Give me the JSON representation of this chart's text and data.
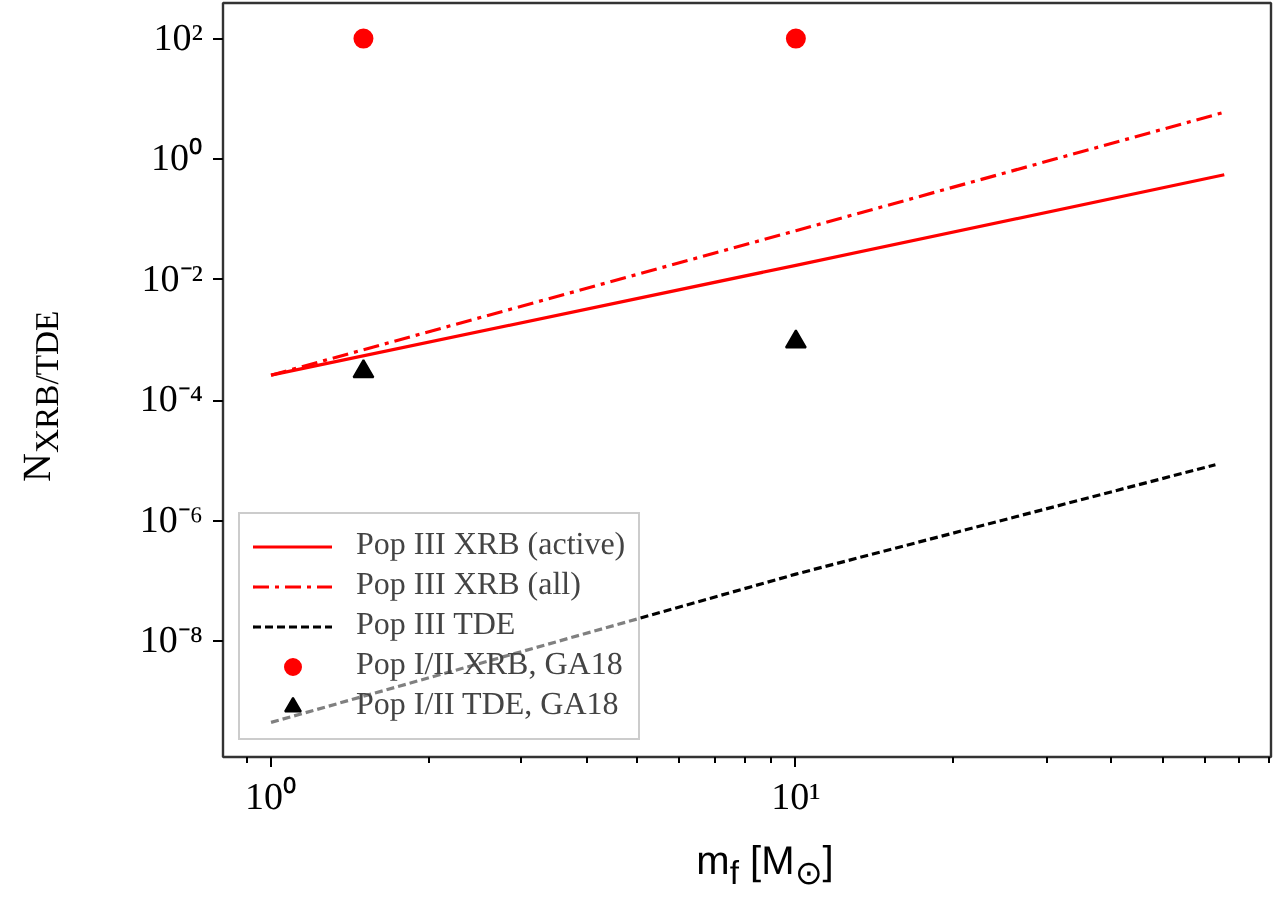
{
  "chart_data": {
    "type": "line",
    "xlabel": "m$_{f}$ [M$_{⊙}$]",
    "ylabel": "N$_{XRB/TDE}$",
    "log": "xy",
    "grid": false,
    "legend": "bottom left",
    "xlim": [
      0.81,
      80.4
    ],
    "ylim": [
      1.2e-10,
      390
    ],
    "xticks": [
      {
        "value": 1,
        "label": "10⁰"
      },
      {
        "value": 10,
        "label": "10¹"
      }
    ],
    "yticks": [
      {
        "value": 1e-08,
        "label": "10⁻⁸"
      },
      {
        "value": 1e-06,
        "label": "10⁻⁶"
      },
      {
        "value": 0.0001,
        "label": "10⁻⁴"
      },
      {
        "value": 0.01,
        "label": "10⁻²"
      },
      {
        "value": 1,
        "label": "10⁰"
      },
      {
        "value": 100,
        "label": "10²"
      }
    ],
    "series": [
      {
        "name": "Pop III XRB (active)",
        "color": "#ff0000",
        "line_style": "solid",
        "x": [
          1,
          10,
          65.5
        ],
        "values": [
          0.00026,
          0.0173,
          0.55
        ]
      },
      {
        "name": "Pop III XRB (all)",
        "color": "#ff0000",
        "line_style": "dashdot",
        "x": [
          1,
          10,
          65.5
        ],
        "values": [
          0.00026,
          0.065,
          6.0
        ]
      },
      {
        "name": "Pop III TDE",
        "color": "#000000",
        "line_style": "dashed",
        "x": [
          1,
          10,
          63
        ],
        "values": [
          4.5e-10,
          1.3e-07,
          8.5e-06
        ]
      },
      {
        "name": "Pop I/II XRB, GA18",
        "type": "scatter",
        "color": "#ff0000",
        "marker": "circle",
        "x": [
          1.5,
          10
        ],
        "values": [
          100,
          100
        ]
      },
      {
        "name": "Pop I/II TDE, GA18",
        "type": "scatter",
        "color": "#000000",
        "marker": "triangle",
        "x": [
          1.5,
          10
        ],
        "values": [
          0.0003,
          0.00093
        ]
      }
    ]
  }
}
